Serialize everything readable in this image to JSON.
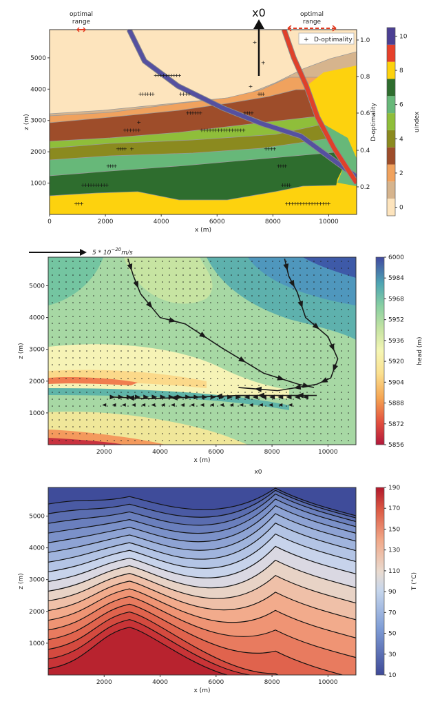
{
  "chart_data": [
    {
      "type": "heatmap",
      "subtype": "layered geological section with D-optimality markers",
      "xlabel": "x (m)",
      "ylabel": "z (m)",
      "xlim": [
        0,
        11000
      ],
      "ylim": [
        0,
        5900
      ],
      "xticks": [
        "0",
        "2000",
        "4000",
        "6000",
        "8000",
        "10000"
      ],
      "yticks": [
        "1000",
        "2000",
        "3000",
        "4000",
        "5000"
      ],
      "colorbar": {
        "label": "uindex",
        "ticks": [
          "0",
          "2",
          "4",
          "6",
          "8",
          "10"
        ],
        "colors": [
          "#fde4bd",
          "#d6b48d",
          "#f0a25e",
          "#9e4d2a",
          "#8b8a1f",
          "#8fbe3a",
          "#67b879",
          "#2e6d2e",
          "#fdd20e",
          "#e6402a",
          "#4b3f93"
        ]
      },
      "secondary_axis": {
        "label": "D-optimality",
        "ticks": [
          "0.2",
          "0.4",
          "0.6",
          "0.8",
          "1.0"
        ]
      },
      "legend": [
        "D-optimality"
      ],
      "annotations": [
        "optimal range",
        "optimal range",
        "x0"
      ],
      "faults": [
        {
          "name": "blue fault",
          "x": [
            2850,
            3400,
            4600,
            6200,
            7600,
            9000,
            10300,
            11000
          ],
          "z": [
            5900,
            4900,
            4100,
            3400,
            2900,
            2500,
            1650,
            1200
          ]
        },
        {
          "name": "red fault",
          "x": [
            8400,
            8750,
            9200,
            9600,
            10200,
            11000
          ],
          "z": [
            5900,
            5000,
            4100,
            3100,
            2100,
            1000
          ]
        }
      ],
      "marker_rows": [
        {
          "x0": 950,
          "x1": 1150,
          "z": 350
        },
        {
          "x0": 1200,
          "x1": 2050,
          "z": 950
        },
        {
          "x0": 2100,
          "x1": 2350,
          "z": 1550
        },
        {
          "x0": 2450,
          "x1": 2700,
          "z": 2100
        },
        {
          "x0": 2700,
          "x1": 3200,
          "z": 2700
        },
        {
          "x0": 3250,
          "x1": 3700,
          "z": 3850
        },
        {
          "x0": 3800,
          "x1": 4650,
          "z": 4450
        },
        {
          "x0": 4700,
          "x1": 5000,
          "z": 3850
        },
        {
          "x0": 4950,
          "x1": 5400,
          "z": 3250
        },
        {
          "x0": 5450,
          "x1": 6950,
          "z": 2700
        },
        {
          "x0": 7000,
          "x1": 7250,
          "z": 3250
        },
        {
          "x0": 7500,
          "x1": 7650,
          "z": 3850
        },
        {
          "x0": 7750,
          "x1": 8050,
          "z": 2100
        },
        {
          "x0": 8200,
          "x1": 8450,
          "z": 1550
        },
        {
          "x0": 8350,
          "x1": 8600,
          "z": 950
        },
        {
          "x0": 8500,
          "x1": 10000,
          "z": 350
        }
      ]
    },
    {
      "type": "heatmap",
      "subtype": "hydraulic head with flow vectors",
      "xlabel": "x (m)",
      "ylabel": "z (m)",
      "xlim": [
        0,
        11000
      ],
      "ylim": [
        0,
        5900
      ],
      "xticks": [
        "2000",
        "4000",
        "6000",
        "8000",
        "10000"
      ],
      "yticks": [
        "1000",
        "2000",
        "3000",
        "4000",
        "5000"
      ],
      "scale_label": "5 * 10^-20 m/s",
      "colorbar": {
        "label": "head (m)",
        "ticks": [
          "5856",
          "5872",
          "5888",
          "5904",
          "5920",
          "5936",
          "5952",
          "5968",
          "5984",
          "6000"
        ],
        "range": [
          5856,
          6000
        ]
      },
      "streamlines": [
        {
          "x": [
            2850,
            3050,
            3300,
            4000,
            4900,
            6200,
            7700,
            8950,
            9500
          ],
          "z": [
            5850,
            5300,
            4750,
            4000,
            3800,
            3050,
            2250,
            1900,
            1800
          ]
        },
        {
          "x": [
            8450,
            8600,
            8900,
            9200,
            10000,
            10350,
            10100,
            9600,
            8200,
            6800
          ],
          "z": [
            5850,
            5300,
            4800,
            4000,
            3400,
            2700,
            2100,
            1900,
            1700,
            1800
          ]
        },
        {
          "x": [
            9600,
            8400,
            6800,
            5400,
            3600,
            2300
          ],
          "z": [
            1550,
            1550,
            1550,
            1500,
            1450,
            1500
          ]
        }
      ]
    },
    {
      "type": "heatmap",
      "subtype": "temperature contours",
      "title": "x0",
      "xlabel": "x (m)",
      "ylabel": "z (m)",
      "xlim": [
        0,
        11000
      ],
      "ylim": [
        0,
        5900
      ],
      "xticks": [
        "2000",
        "4000",
        "6000",
        "8000",
        "10000"
      ],
      "yticks": [
        "1000",
        "2000",
        "3000",
        "4000",
        "5000"
      ],
      "colorbar": {
        "label": "T (°C)",
        "ticks": [
          "10",
          "30",
          "50",
          "70",
          "90",
          "110",
          "130",
          "150",
          "170",
          "190"
        ],
        "range": [
          10,
          190
        ]
      }
    }
  ]
}
